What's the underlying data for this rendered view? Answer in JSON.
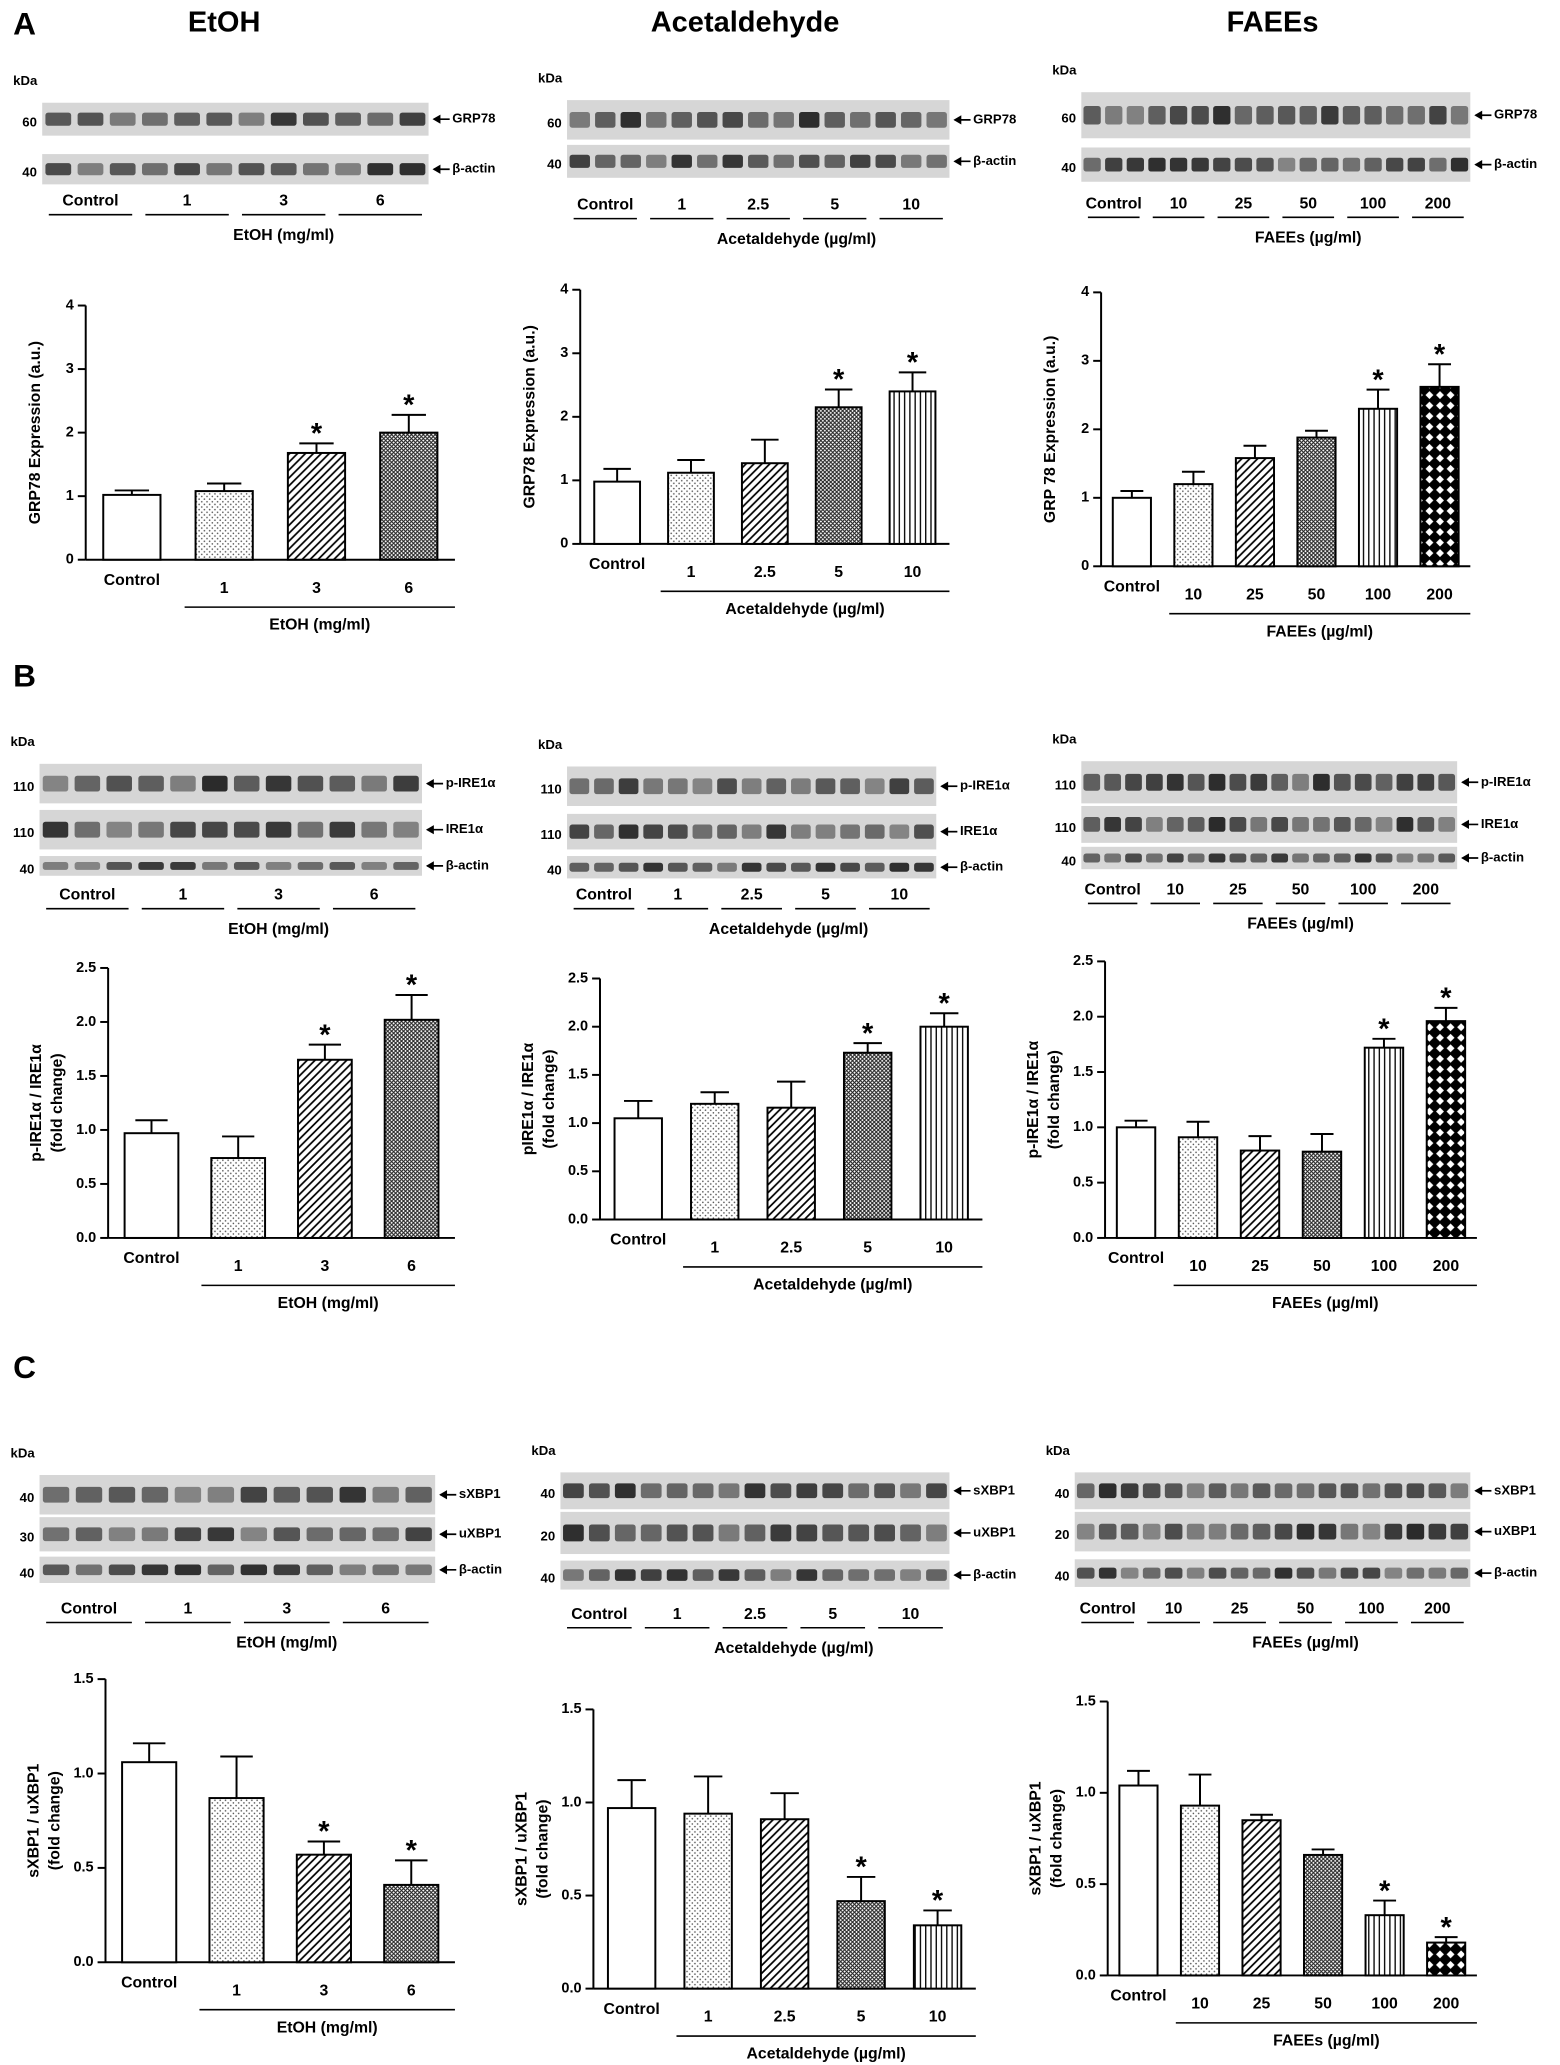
{
  "headers": [
    "EtOH",
    "Acetaldehyde",
    "FAEEs"
  ],
  "panel_labels": [
    "A",
    "B",
    "C"
  ],
  "blots": [
    {
      "kda": "kDa",
      "rows": [
        {
          "protein": "GRP78",
          "mw": 60
        },
        {
          "protein": "β-actin",
          "mw": 40
        }
      ],
      "lanes": [
        "Control",
        "1",
        "3",
        "6"
      ],
      "treatment": "EtOH (mg/ml)"
    },
    {
      "kda": "kDa",
      "rows": [
        {
          "protein": "GRP78",
          "mw": 60
        },
        {
          "protein": "β-actin",
          "mw": 40
        }
      ],
      "lanes": [
        "Control",
        "1",
        "2.5",
        "5",
        "10"
      ],
      "treatment": "Acetaldehyde (µg/ml)"
    },
    {
      "kda": "kDa",
      "rows": [
        {
          "protein": "GRP78",
          "mw": 60
        },
        {
          "protein": "β-actin",
          "mw": 40
        }
      ],
      "lanes": [
        "Control",
        "10",
        "25",
        "50",
        "100",
        "200"
      ],
      "treatment": "FAEEs (µg/ml)"
    },
    {
      "kda": "kDa",
      "rows": [
        {
          "protein": "p-IRE1α",
          "mw": 110
        },
        {
          "protein": "IRE1α",
          "mw": 110
        },
        {
          "protein": "β-actin",
          "mw": 40
        }
      ],
      "lanes": [
        "Control",
        "1",
        "3",
        "6"
      ],
      "treatment": "EtOH (mg/ml)"
    },
    {
      "kda": "kDa",
      "rows": [
        {
          "protein": "p-IRE1α",
          "mw": 110
        },
        {
          "protein": "IRE1α",
          "mw": 110
        },
        {
          "protein": "β-actin",
          "mw": 40
        }
      ],
      "lanes": [
        "Control",
        "1",
        "2.5",
        "5",
        "10"
      ],
      "treatment": "Acetaldehyde (µg/ml)"
    },
    {
      "kda": "kDa",
      "rows": [
        {
          "protein": "p-IRE1α",
          "mw": 110
        },
        {
          "protein": "IRE1α",
          "mw": 110
        },
        {
          "protein": "β-actin",
          "mw": 40
        }
      ],
      "lanes": [
        "Control",
        "10",
        "25",
        "50",
        "100",
        "200"
      ],
      "treatment": "FAEEs (µg/ml)"
    },
    {
      "kda": "kDa",
      "rows": [
        {
          "protein": "sXBP1",
          "mw": 40
        },
        {
          "protein": "uXBP1",
          "mw": 30
        },
        {
          "protein": "β-actin",
          "mw": 40
        }
      ],
      "lanes": [
        "Control",
        "1",
        "3",
        "6"
      ],
      "treatment": "EtOH (mg/ml)"
    },
    {
      "kda": "kDa",
      "rows": [
        {
          "protein": "sXBP1",
          "mw": 40
        },
        {
          "protein": "uXBP1",
          "mw": 20
        },
        {
          "protein": "β-actin",
          "mw": 40
        }
      ],
      "lanes": [
        "Control",
        "1",
        "2.5",
        "5",
        "10"
      ],
      "treatment": "Acetaldehyde (µg/ml)"
    },
    {
      "kda": "kDa",
      "rows": [
        {
          "protein": "sXBP1",
          "mw": 40
        },
        {
          "protein": "uXBP1",
          "mw": 20
        },
        {
          "protein": "β-actin",
          "mw": 40
        }
      ],
      "lanes": [
        "Control",
        "10",
        "25",
        "50",
        "100",
        "200"
      ],
      "treatment": "FAEEs (µg/ml)"
    }
  ],
  "chart_data": [
    {
      "type": "bar",
      "ylabel": [
        "GRP78 Expression (a.u.)"
      ],
      "categories": [
        "Control",
        "1",
        "3",
        "6"
      ],
      "values": [
        1.02,
        1.08,
        1.68,
        2.0
      ],
      "errors": [
        0.07,
        0.12,
        0.15,
        0.28
      ],
      "ylim": [
        0,
        4
      ],
      "yticks": [
        0,
        1,
        2,
        3,
        4
      ],
      "xlabel": "EtOH (mg/ml)",
      "patterns": [
        "none",
        "dots",
        "diagonal",
        "dense"
      ],
      "significant": [
        false,
        false,
        true,
        true
      ],
      "significance_label": "*",
      "color": "#000000"
    },
    {
      "type": "bar",
      "ylabel": [
        "GRP78 Expression (a.u.)"
      ],
      "categories": [
        "Control",
        "1",
        "2.5",
        "5",
        "10"
      ],
      "values": [
        0.98,
        1.12,
        1.27,
        2.15,
        2.4
      ],
      "errors": [
        0.2,
        0.2,
        0.37,
        0.28,
        0.3
      ],
      "ylim": [
        0,
        4
      ],
      "yticks": [
        0,
        1,
        2,
        3,
        4
      ],
      "xlabel": "Acetaldehyde (µg/ml)",
      "patterns": [
        "none",
        "dots",
        "diagonal",
        "dense",
        "vertical"
      ],
      "significant": [
        false,
        false,
        false,
        true,
        true
      ],
      "significance_label": "*",
      "color": "#000000"
    },
    {
      "type": "bar",
      "ylabel": [
        "GRP 78 Expression (a.u.)"
      ],
      "categories": [
        "Control",
        "10",
        "25",
        "50",
        "100",
        "200"
      ],
      "values": [
        1.0,
        1.2,
        1.58,
        1.88,
        2.3,
        2.62
      ],
      "errors": [
        0.1,
        0.18,
        0.18,
        0.1,
        0.28,
        0.33
      ],
      "ylim": [
        0,
        4
      ],
      "yticks": [
        0,
        1,
        2,
        3,
        4
      ],
      "xlabel": "FAEEs (µg/ml)",
      "patterns": [
        "none",
        "dots",
        "diagonal",
        "dense",
        "vertical",
        "checker"
      ],
      "significant": [
        false,
        false,
        false,
        false,
        true,
        true
      ],
      "significance_label": "*",
      "color": "#000000"
    },
    {
      "type": "bar",
      "ylabel": [
        "p-IRE1α / IRE1α",
        "(fold change)"
      ],
      "categories": [
        "Control",
        "1",
        "3",
        "6"
      ],
      "values": [
        0.97,
        0.74,
        1.65,
        2.02
      ],
      "errors": [
        0.12,
        0.2,
        0.14,
        0.23
      ],
      "ylim": [
        0,
        2.5
      ],
      "yticks": [
        {
          "value": 0,
          "label": "0.0"
        },
        {
          "value": 0.5,
          "label": "0.5"
        },
        {
          "value": 1,
          "label": "1.0"
        },
        {
          "value": 1.5,
          "label": "1.5"
        },
        {
          "value": 2,
          "label": "2.0"
        },
        {
          "value": 2.5,
          "label": "2.5"
        }
      ],
      "xlabel": "EtOH (mg/ml)",
      "patterns": [
        "none",
        "dots",
        "diagonal",
        "dense"
      ],
      "significant": [
        false,
        false,
        true,
        true
      ],
      "significance_label": "*",
      "color": "#000000"
    },
    {
      "type": "bar",
      "ylabel": [
        "pIRE1α / IRE1α",
        "(fold change)"
      ],
      "categories": [
        "Control",
        "1",
        "2.5",
        "5",
        "10"
      ],
      "values": [
        1.05,
        1.2,
        1.16,
        1.73,
        2.0
      ],
      "errors": [
        0.18,
        0.12,
        0.27,
        0.1,
        0.14
      ],
      "ylim": [
        0,
        2.5
      ],
      "yticks": [
        {
          "value": 0,
          "label": "0.0"
        },
        {
          "value": 0.5,
          "label": "0.5"
        },
        {
          "value": 1,
          "label": "1.0"
        },
        {
          "value": 1.5,
          "label": "1.5"
        },
        {
          "value": 2,
          "label": "2.0"
        },
        {
          "value": 2.5,
          "label": "2.5"
        }
      ],
      "xlabel": "Acetaldehyde (µg/ml)",
      "patterns": [
        "none",
        "dots",
        "diagonal",
        "dense",
        "vertical"
      ],
      "significant": [
        false,
        false,
        false,
        true,
        true
      ],
      "significance_label": "*",
      "color": "#000000"
    },
    {
      "type": "bar",
      "ylabel": [
        "p-IRE1α / IRE1α",
        "(fold change)"
      ],
      "categories": [
        "Control",
        "10",
        "25",
        "50",
        "100",
        "200"
      ],
      "values": [
        1.0,
        0.91,
        0.79,
        0.78,
        1.72,
        1.96
      ],
      "errors": [
        0.06,
        0.14,
        0.13,
        0.16,
        0.08,
        0.12
      ],
      "ylim": [
        0,
        2.5
      ],
      "yticks": [
        {
          "value": 0,
          "label": "0.0"
        },
        {
          "value": 0.5,
          "label": "0.5"
        },
        {
          "value": 1,
          "label": "1.0"
        },
        {
          "value": 1.5,
          "label": "1.5"
        },
        {
          "value": 2,
          "label": "2.0"
        },
        {
          "value": 2.5,
          "label": "2.5"
        }
      ],
      "xlabel": "FAEEs (µg/ml)",
      "patterns": [
        "none",
        "dots",
        "diagonal",
        "dense",
        "vertical",
        "checker"
      ],
      "significant": [
        false,
        false,
        false,
        false,
        true,
        true
      ],
      "significance_label": "*",
      "color": "#000000"
    },
    {
      "type": "bar",
      "ylabel": [
        "sXBP1 / uXBP1",
        "(fold change)"
      ],
      "categories": [
        "Control",
        "1",
        "3",
        "6"
      ],
      "values": [
        1.06,
        0.87,
        0.57,
        0.41
      ],
      "errors": [
        0.1,
        0.22,
        0.07,
        0.13
      ],
      "ylim": [
        0,
        1.5
      ],
      "yticks": [
        {
          "value": 0,
          "label": "0.0"
        },
        {
          "value": 0.5,
          "label": "0.5"
        },
        {
          "value": 1,
          "label": "1.0"
        },
        {
          "value": 1.5,
          "label": "1.5"
        }
      ],
      "xlabel": "EtOH (mg/ml)",
      "patterns": [
        "none",
        "dots",
        "diagonal",
        "dense"
      ],
      "significant": [
        false,
        false,
        true,
        true
      ],
      "significance_label": "*",
      "color": "#000000"
    },
    {
      "type": "bar",
      "ylabel": [
        "sXBP1 / uXBP1",
        "(fold change)"
      ],
      "categories": [
        "Control",
        "1",
        "2.5",
        "5",
        "10"
      ],
      "values": [
        0.97,
        0.94,
        0.91,
        0.47,
        0.34
      ],
      "errors": [
        0.15,
        0.2,
        0.14,
        0.13,
        0.08
      ],
      "ylim": [
        0,
        1.5
      ],
      "yticks": [
        {
          "value": 0,
          "label": "0.0"
        },
        {
          "value": 0.5,
          "label": "0.5"
        },
        {
          "value": 1,
          "label": "1.0"
        },
        {
          "value": 1.5,
          "label": "1.5"
        }
      ],
      "xlabel": "Acetaldehyde (µg/ml)",
      "patterns": [
        "none",
        "dots",
        "diagonal",
        "dense",
        "vertical"
      ],
      "significant": [
        false,
        false,
        false,
        true,
        true
      ],
      "significance_label": "*",
      "color": "#000000"
    },
    {
      "type": "bar",
      "ylabel": [
        "sXBP1 / uXBP1",
        "(fold change)"
      ],
      "categories": [
        "Control",
        "10",
        "25",
        "50",
        "100",
        "200"
      ],
      "values": [
        1.04,
        0.93,
        0.85,
        0.66,
        0.33,
        0.18
      ],
      "errors": [
        0.08,
        0.17,
        0.03,
        0.03,
        0.08,
        0.03
      ],
      "ylim": [
        0,
        1.5
      ],
      "yticks": [
        {
          "value": 0,
          "label": "0.0"
        },
        {
          "value": 0.5,
          "label": "0.5"
        },
        {
          "value": 1,
          "label": "1.0"
        },
        {
          "value": 1.5,
          "label": "1.5"
        }
      ],
      "xlabel": "FAEEs (µg/ml)",
      "patterns": [
        "none",
        "dots",
        "diagonal",
        "dense",
        "vertical",
        "checker"
      ],
      "significant": [
        false,
        false,
        false,
        false,
        true,
        true
      ],
      "significance_label": "*",
      "color": "#000000"
    }
  ]
}
